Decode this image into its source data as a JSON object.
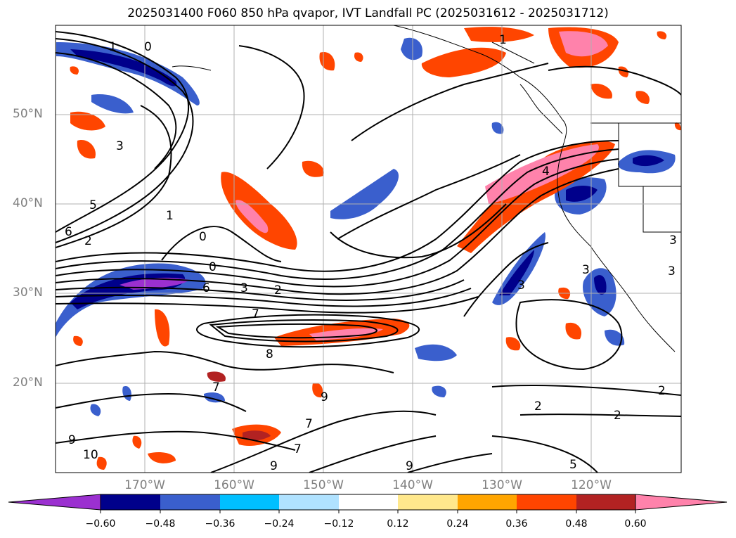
{
  "title": "2025031400 F060 850 hPa qvapor, IVT Landfall PC (2025031612 - 2025031712)",
  "map": {
    "lat_labels": [
      "50°N",
      "40°N",
      "30°N",
      "20°N"
    ],
    "lon_labels": [
      "170°W",
      "160°W",
      "150°W",
      "140°W",
      "130°W",
      "120°W"
    ],
    "contour_labels": [
      "1",
      "0",
      "3",
      "5",
      "1",
      "6",
      "2",
      "0",
      "0",
      "6",
      "3",
      "2",
      "7",
      "8",
      "7",
      "9",
      "10",
      "7",
      "7",
      "9",
      "9",
      "4",
      "3",
      "3",
      "3",
      "2",
      "2",
      "5",
      "2",
      "9",
      "1",
      "3"
    ]
  },
  "colorbar": {
    "ticks": [
      "−0.60",
      "−0.48",
      "−0.36",
      "−0.24",
      "−0.12",
      "0.12",
      "0.24",
      "0.36",
      "0.48",
      "0.60"
    ],
    "colors": [
      "#9b30d0",
      "#00008b",
      "#3a5fcd",
      "#00bfff",
      "#b0e2ff",
      "#ffffff",
      "#ffe88c",
      "#ffa500",
      "#ff4500",
      "#b22222",
      "#ff82ab"
    ]
  }
}
